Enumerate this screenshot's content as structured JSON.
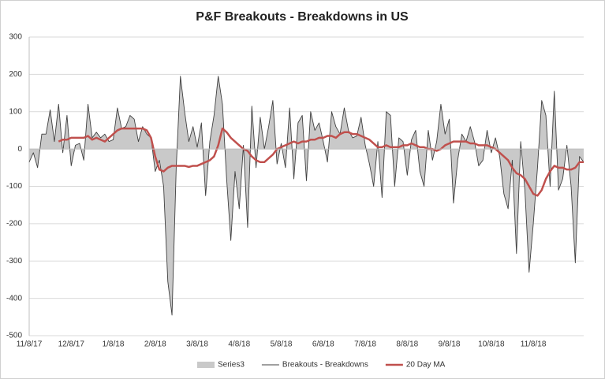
{
  "chart_data": {
    "type": "line",
    "title": "P&F Breakouts - Breakdowns in US",
    "categories": [
      "11/8/17",
      null,
      null,
      null,
      null,
      null,
      null,
      null,
      null,
      null,
      "12/8/17",
      null,
      null,
      null,
      null,
      null,
      null,
      null,
      null,
      null,
      "1/8/18",
      null,
      null,
      null,
      null,
      null,
      null,
      null,
      null,
      null,
      "2/8/18",
      null,
      null,
      null,
      null,
      null,
      null,
      null,
      null,
      null,
      "3/8/18",
      null,
      null,
      null,
      null,
      null,
      null,
      null,
      null,
      null,
      "4/8/18",
      null,
      null,
      null,
      null,
      null,
      null,
      null,
      null,
      null,
      "5/8/18",
      null,
      null,
      null,
      null,
      null,
      null,
      null,
      null,
      null,
      "6/8/18",
      null,
      null,
      null,
      null,
      null,
      null,
      null,
      null,
      null,
      "7/8/18",
      null,
      null,
      null,
      null,
      null,
      null,
      null,
      null,
      null,
      "8/8/18",
      null,
      null,
      null,
      null,
      null,
      null,
      null,
      null,
      null,
      "9/8/18",
      null,
      null,
      null,
      null,
      null,
      null,
      null,
      null,
      null,
      "10/8/18",
      null,
      null,
      null,
      null,
      null,
      null,
      null,
      null,
      null,
      "11/8/18",
      null,
      null,
      null,
      null,
      null,
      null,
      null,
      null,
      null,
      null,
      null,
      null
    ],
    "series": [
      {
        "name": "Series3",
        "style": "area",
        "color": "#c9c9c9",
        "values": [
          -35,
          -10,
          -50,
          40,
          40,
          105,
          20,
          120,
          -10,
          90,
          -45,
          10,
          15,
          -30,
          120,
          30,
          45,
          30,
          40,
          20,
          25,
          110,
          55,
          60,
          90,
          80,
          20,
          60,
          40,
          30,
          -60,
          -30,
          -100,
          -355,
          -445,
          -50,
          195,
          100,
          20,
          60,
          5,
          70,
          -125,
          20,
          90,
          195,
          120,
          -80,
          -245,
          -60,
          -160,
          10,
          -210,
          115,
          -50,
          85,
          0,
          60,
          130,
          -40,
          15,
          -50,
          110,
          -80,
          70,
          90,
          -85,
          100,
          50,
          70,
          20,
          -35,
          100,
          60,
          40,
          110,
          50,
          30,
          35,
          85,
          10,
          -40,
          -100,
          20,
          -130,
          100,
          90,
          -100,
          30,
          20,
          -70,
          25,
          50,
          -60,
          -100,
          50,
          -30,
          20,
          120,
          40,
          80,
          -145,
          -30,
          40,
          20,
          60,
          20,
          -45,
          -30,
          50,
          -10,
          30,
          -20,
          -120,
          -160,
          -30,
          -280,
          20,
          -110,
          -330,
          -200,
          -50,
          130,
          90,
          -100,
          155,
          -110,
          -80,
          10,
          -100,
          -305,
          -20,
          -35
        ]
      },
      {
        "name": "Breakouts - Breakdowns",
        "style": "line",
        "color": "#404040",
        "values": [
          -35,
          -10,
          -50,
          40,
          40,
          105,
          20,
          120,
          -10,
          90,
          -45,
          10,
          15,
          -30,
          120,
          30,
          45,
          30,
          40,
          20,
          25,
          110,
          55,
          60,
          90,
          80,
          20,
          60,
          40,
          30,
          -60,
          -30,
          -100,
          -355,
          -445,
          -50,
          195,
          100,
          20,
          60,
          5,
          70,
          -125,
          20,
          90,
          195,
          120,
          -80,
          -245,
          -60,
          -160,
          10,
          -210,
          115,
          -50,
          85,
          0,
          60,
          130,
          -40,
          15,
          -50,
          110,
          -80,
          70,
          90,
          -85,
          100,
          50,
          70,
          20,
          -35,
          100,
          60,
          40,
          110,
          50,
          30,
          35,
          85,
          10,
          -40,
          -100,
          20,
          -130,
          100,
          90,
          -100,
          30,
          20,
          -70,
          25,
          50,
          -60,
          -100,
          50,
          -30,
          20,
          120,
          40,
          80,
          -145,
          -30,
          40,
          20,
          60,
          20,
          -45,
          -30,
          50,
          -10,
          30,
          -20,
          -120,
          -160,
          -30,
          -280,
          20,
          -110,
          -330,
          -200,
          -50,
          130,
          90,
          -100,
          155,
          -110,
          -80,
          10,
          -100,
          -305,
          -20,
          -35
        ]
      },
      {
        "name": "20 Day MA",
        "style": "line",
        "color": "#c0504d",
        "values": [
          null,
          null,
          null,
          null,
          null,
          null,
          null,
          20,
          25,
          25,
          30,
          30,
          30,
          30,
          35,
          25,
          30,
          25,
          20,
          30,
          40,
          50,
          55,
          55,
          55,
          55,
          55,
          55,
          50,
          30,
          -20,
          -55,
          -60,
          -50,
          -45,
          -45,
          -45,
          -45,
          -48,
          -45,
          -45,
          -40,
          -35,
          -30,
          -20,
          10,
          55,
          45,
          30,
          20,
          10,
          0,
          -5,
          -20,
          -30,
          -35,
          -35,
          -25,
          -15,
          0,
          5,
          10,
          15,
          20,
          15,
          20,
          20,
          25,
          25,
          30,
          30,
          35,
          35,
          30,
          40,
          45,
          45,
          40,
          40,
          35,
          30,
          25,
          15,
          5,
          5,
          10,
          5,
          5,
          5,
          10,
          10,
          15,
          10,
          5,
          5,
          0,
          0,
          -5,
          0,
          10,
          15,
          20,
          20,
          20,
          20,
          15,
          15,
          10,
          10,
          10,
          5,
          0,
          -10,
          -20,
          -30,
          -50,
          -65,
          -70,
          -80,
          -100,
          -120,
          -125,
          -110,
          -80,
          -60,
          -45,
          -50,
          -50,
          -55,
          -55,
          -50,
          -35,
          -35
        ]
      }
    ],
    "ylim": [
      -500,
      300
    ],
    "yticks": [
      -500,
      -400,
      -300,
      -200,
      -100,
      0,
      100,
      200,
      300
    ],
    "grid": true,
    "legend": "bottom"
  }
}
